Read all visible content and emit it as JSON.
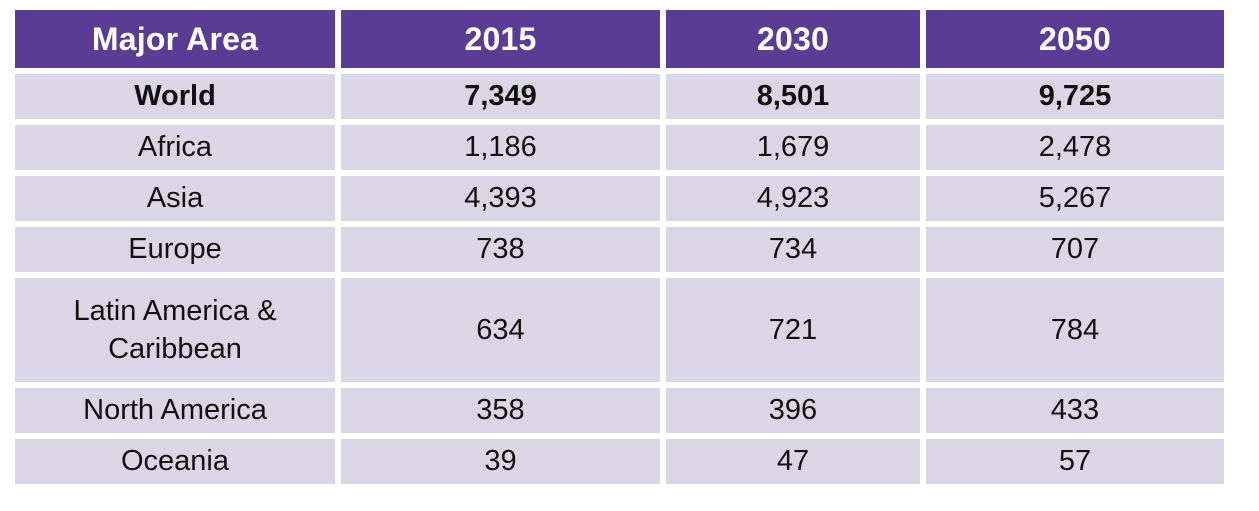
{
  "colors": {
    "page_bg": "#FFFFFF",
    "header_bg": "#5B3C94",
    "header_text": "#FFFFFF",
    "row_bg": "#DBD6E5",
    "body_text": "#111111"
  },
  "table": {
    "header": [
      "Major Area",
      "2015",
      "2030",
      "2050"
    ],
    "rows": [
      {
        "label": "World",
        "values": [
          "7,349",
          "8,501",
          "9,725"
        ]
      },
      {
        "label": "Africa",
        "values": [
          "1,186",
          "1,679",
          "2,478"
        ]
      },
      {
        "label": "Asia",
        "values": [
          "4,393",
          "4,923",
          "5,267"
        ]
      },
      {
        "label": "Europe",
        "values": [
          "738",
          "734",
          "707"
        ]
      },
      {
        "label": "Latin America & Caribbean",
        "values": [
          "634",
          "721",
          "784"
        ]
      },
      {
        "label": "North America",
        "values": [
          "358",
          "396",
          "433"
        ]
      },
      {
        "label": "Oceania",
        "values": [
          "39",
          "47",
          "57"
        ]
      }
    ]
  },
  "chart_data": {
    "type": "table",
    "columns": [
      "Major Area",
      "2015",
      "2030",
      "2050"
    ],
    "rows": [
      [
        "World",
        7349,
        8501,
        9725
      ],
      [
        "Africa",
        1186,
        1679,
        2478
      ],
      [
        "Asia",
        4393,
        4923,
        5267
      ],
      [
        "Europe",
        738,
        734,
        707
      ],
      [
        "Latin America & Caribbean",
        634,
        721,
        784
      ],
      [
        "North America",
        358,
        396,
        433
      ],
      [
        "Oceania",
        39,
        47,
        57
      ]
    ]
  }
}
